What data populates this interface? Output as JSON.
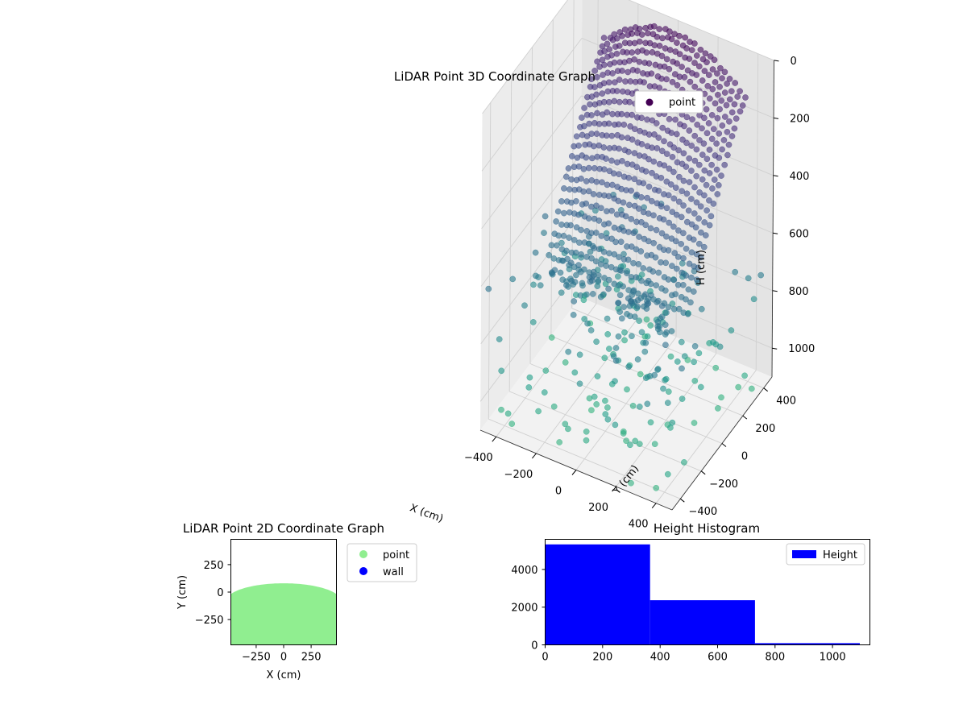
{
  "chart_data": [
    {
      "type": "scatter3d",
      "title": "LiDAR Point 3D Coordinate Graph",
      "xlabel": "X (cm)",
      "ylabel": "Y (cm)",
      "zlabel": "H (cm)",
      "x_ticks": [
        -400,
        -200,
        0,
        200,
        400
      ],
      "y_ticks": [
        -400,
        -200,
        0,
        200,
        400
      ],
      "z_ticks": [
        0,
        200,
        400,
        600,
        800,
        1000
      ],
      "xlim": [
        -480,
        480
      ],
      "ylim": [
        -480,
        480
      ],
      "zlim": [
        1100,
        0
      ],
      "z_inverted": true,
      "grid": true,
      "legend": {
        "position": "top-right",
        "entries": [
          "point"
        ]
      },
      "series": [
        {
          "name": "point",
          "colormap": "viridis (by height)"
        }
      ],
      "shape": {
        "dome": {
          "x_range": [
            -350,
            350
          ],
          "y_range": [
            -80,
            450
          ],
          "h_range": [
            0,
            650
          ]
        },
        "band": {
          "x_range": [
            -300,
            300
          ],
          "y_center": -150,
          "h_range": [
            600,
            700
          ]
        },
        "scatter": {
          "x_range": [
            -480,
            480
          ],
          "y_range": [
            -480,
            480
          ],
          "h_range": [
            600,
            1100
          ]
        }
      }
    },
    {
      "type": "scatter",
      "title": "LiDAR Point 2D Coordinate Graph",
      "xlabel": "X (cm)",
      "ylabel": "Y (cm)",
      "x_ticks": [
        -250,
        0,
        250
      ],
      "y_ticks": [
        250,
        0,
        -250
      ],
      "xlim": [
        -480,
        480
      ],
      "ylim": [
        -480,
        480
      ],
      "legend": {
        "position": "outside-right",
        "entries": [
          "point",
          "wall"
        ]
      },
      "series": [
        {
          "name": "point",
          "color": "#90ee90",
          "extent": {
            "x": [
              -480,
              480
            ],
            "y_top_center": 80,
            "y_top_edge": -80,
            "y_bottom": -480
          }
        },
        {
          "name": "wall",
          "color": "#0000ff"
        }
      ]
    },
    {
      "type": "histogram",
      "title": "Height Histogram",
      "x_ticks": [
        0,
        200,
        400,
        600,
        800,
        1000
      ],
      "y_ticks": [
        0,
        2000,
        4000
      ],
      "xlim": [
        0,
        1130
      ],
      "ylim": [
        0,
        5600
      ],
      "legend": {
        "position": "top-right",
        "entries": [
          "Height"
        ]
      },
      "color": "#0000ff",
      "bins": [
        {
          "from": 0,
          "to": 365,
          "count": 5330
        },
        {
          "from": 365,
          "to": 730,
          "count": 2370
        },
        {
          "from": 730,
          "to": 1095,
          "count": 90
        }
      ]
    }
  ]
}
